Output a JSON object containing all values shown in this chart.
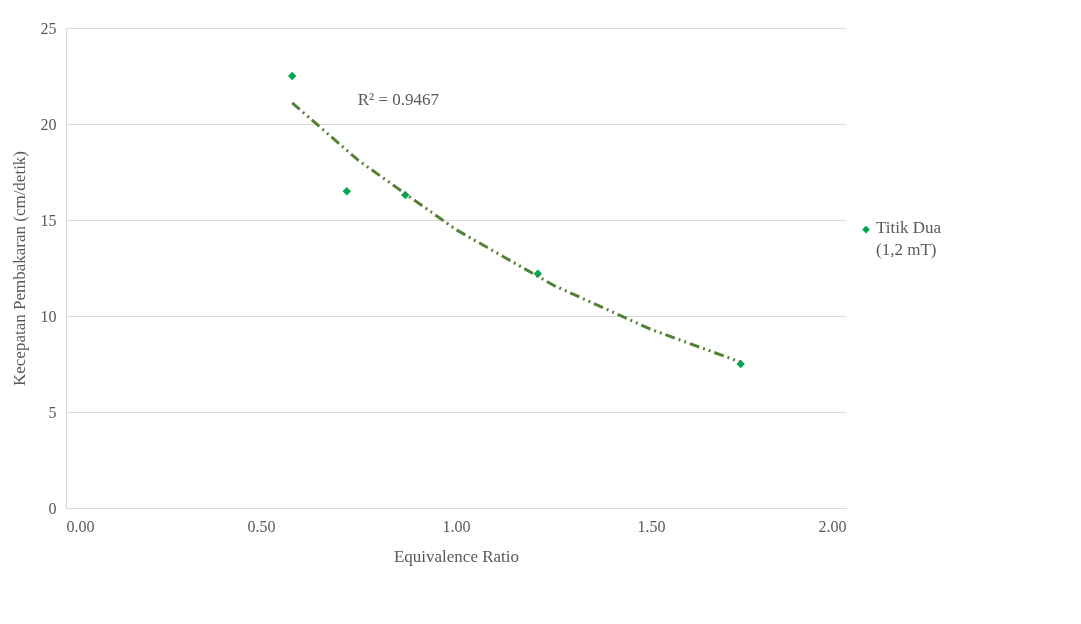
{
  "chart_data": {
    "type": "scatter",
    "xlabel": "Equivalence Ratio",
    "ylabel": "Kecepatan Pembakaran (cm/detik)",
    "series": [
      {
        "name": "Titik Dua (1,2 mT)",
        "color": "#00a651",
        "x": [
          0.58,
          0.72,
          0.87,
          1.21,
          1.73
        ],
        "values": [
          22.5,
          16.5,
          16.3,
          12.2,
          7.5
        ],
        "marker": "diamond"
      },
      {
        "type": "line",
        "color": "#548235",
        "line_style": "dashed",
        "x": [
          0.58,
          0.75,
          1.0,
          1.25,
          1.5,
          1.73
        ],
        "values": [
          21.1,
          18.1,
          14.5,
          11.6,
          9.3,
          7.6
        ]
      }
    ],
    "annotations": [
      "R² = 0.9467"
    ],
    "xlim": [
      0,
      2
    ],
    "xticks": [
      {
        "value": 0,
        "label": "0.00"
      },
      {
        "value": 0.5,
        "label": "0.50"
      },
      {
        "value": 1,
        "label": "1.00"
      },
      {
        "value": 1.5,
        "label": "1.50"
      },
      {
        "value": 2,
        "label": "2.00"
      }
    ],
    "ylim": [
      0,
      25
    ],
    "yticks": [
      0,
      5,
      10,
      15,
      20,
      25
    ],
    "grid": "y",
    "legend": "right"
  }
}
